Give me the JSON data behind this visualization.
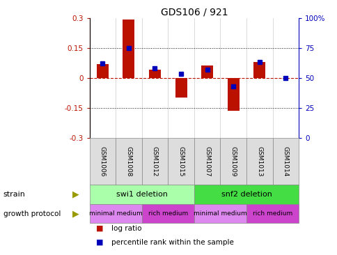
{
  "title": "GDS106 / 921",
  "samples": [
    "GSM1006",
    "GSM1008",
    "GSM1012",
    "GSM1015",
    "GSM1007",
    "GSM1009",
    "GSM1013",
    "GSM1014"
  ],
  "log_ratio": [
    0.07,
    0.29,
    0.04,
    -0.1,
    0.06,
    -0.165,
    0.08,
    0.0
  ],
  "percentile_rank": [
    0.62,
    0.75,
    0.58,
    0.53,
    0.57,
    0.43,
    0.63,
    0.5
  ],
  "ylim_left": [
    -0.3,
    0.3
  ],
  "ylim_right": [
    0.0,
    1.0
  ],
  "yticks_left": [
    -0.3,
    -0.15,
    0.0,
    0.15,
    0.3
  ],
  "ytick_labels_left": [
    "-0.3",
    "-0.15",
    "0",
    "0.15",
    "0.3"
  ],
  "yticks_right": [
    0.0,
    0.25,
    0.5,
    0.75,
    1.0
  ],
  "ytick_labels_right": [
    "0",
    "25",
    "50",
    "75",
    "100%"
  ],
  "bar_color": "#bb1100",
  "dot_color": "#0000bb",
  "zero_line_color": "#bb1100",
  "grid_color": "#111111",
  "strain_groups": [
    {
      "label": "swi1 deletion",
      "start": 0,
      "end": 4,
      "color": "#aaffaa"
    },
    {
      "label": "snf2 deletion",
      "start": 4,
      "end": 8,
      "color": "#44dd44"
    }
  ],
  "growth_groups": [
    {
      "label": "minimal medium",
      "start": 0,
      "end": 2,
      "color": "#dd88ee"
    },
    {
      "label": "rich medium",
      "start": 2,
      "end": 4,
      "color": "#cc44cc"
    },
    {
      "label": "minimal medium",
      "start": 4,
      "end": 6,
      "color": "#dd88ee"
    },
    {
      "label": "rich medium",
      "start": 6,
      "end": 8,
      "color": "#cc44cc"
    }
  ],
  "strain_label": "strain",
  "growth_label": "growth protocol",
  "legend_items": [
    {
      "label": "log ratio",
      "color": "#bb1100"
    },
    {
      "label": "percentile rank within the sample",
      "color": "#0000bb"
    }
  ]
}
